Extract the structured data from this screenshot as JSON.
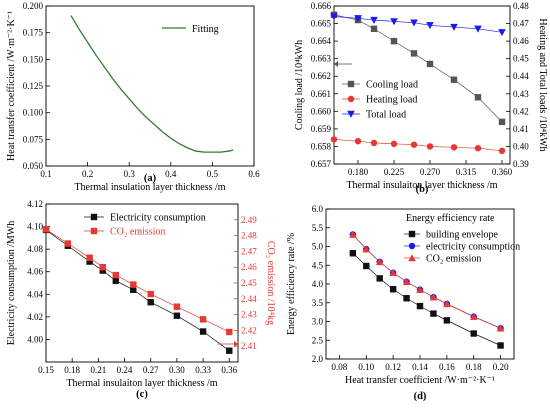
{
  "chart_data": [
    {
      "id": "a",
      "type": "line",
      "panel_label": "(a)",
      "xlabel": "Thermal insulation layer thickness /m",
      "ylabel": "Heat transfer coefficient /W·m⁻²·K⁻¹",
      "xlim": [
        0.1,
        0.6
      ],
      "ylim": [
        0.05,
        0.2
      ],
      "xticks": [
        "0.1",
        "0.2",
        "0.3",
        "0.4",
        "0.5",
        "0.6"
      ],
      "yticks": [
        "0.050",
        "0.075",
        "0.100",
        "0.125",
        "0.150",
        "0.175",
        "0.200"
      ],
      "legend": "top-right",
      "series": [
        {
          "name": "Fitting",
          "color": "#2e7d32",
          "x": [
            0.16,
            0.18,
            0.2,
            0.22,
            0.24,
            0.26,
            0.28,
            0.3,
            0.32,
            0.34,
            0.36,
            0.38,
            0.4,
            0.42,
            0.44,
            0.46,
            0.48,
            0.5,
            0.52,
            0.54,
            0.55
          ],
          "y": [
            0.191,
            0.178,
            0.166,
            0.154,
            0.143,
            0.132,
            0.122,
            0.113,
            0.104,
            0.096,
            0.089,
            0.082,
            0.076,
            0.071,
            0.067,
            0.064,
            0.063,
            0.063,
            0.063,
            0.064,
            0.065
          ]
        }
      ]
    },
    {
      "id": "b",
      "type": "line",
      "panel_label": "(b)",
      "xlabel": "Thermal insulaiton layer thickness /m",
      "ylabel": "Cooling load /10⁴kWh",
      "y2label": "Heating and Total loads /10⁴kWh",
      "xlim": [
        0.15,
        0.37
      ],
      "ylim": [
        0.657,
        0.666
      ],
      "y2lim": [
        0.39,
        0.48
      ],
      "xticks": [
        "0.180",
        "0.225",
        "0.270",
        "0.315",
        "0.360"
      ],
      "yticks": [
        "0.657",
        "0.658",
        "0.659",
        "0.660",
        "0.661",
        "0.662",
        "0.663",
        "0.664",
        "0.665",
        "0.666"
      ],
      "y2ticks": [
        "0.39",
        "0.40",
        "0.41",
        "0.42",
        "0.43",
        "0.44",
        "0.45",
        "0.46",
        "0.47",
        "0.48"
      ],
      "legend": "center-left",
      "x": [
        0.15,
        0.18,
        0.2,
        0.225,
        0.25,
        0.27,
        0.3,
        0.33,
        0.36
      ],
      "series": [
        {
          "name": "Cooling load",
          "color": "#555555",
          "marker": "square",
          "axis": "y",
          "values": [
            0.6655,
            0.6652,
            0.6647,
            0.664,
            0.6633,
            0.6627,
            0.6618,
            0.6608,
            0.6594
          ]
        },
        {
          "name": "Heating load",
          "color": "#e53935",
          "marker": "circle",
          "axis": "y2",
          "values": [
            0.404,
            0.403,
            0.402,
            0.4015,
            0.401,
            0.4,
            0.3995,
            0.399,
            0.3975
          ]
        },
        {
          "name": "Total load",
          "color": "#1a1aee",
          "marker": "triangle-down",
          "axis": "y2",
          "values": [
            0.474,
            0.473,
            0.472,
            0.4712,
            0.4705,
            0.469,
            0.468,
            0.467,
            0.465
          ]
        }
      ]
    },
    {
      "id": "c",
      "type": "line",
      "panel_label": "(c)",
      "xlabel": "Thermal insulaiton layer thickness /m",
      "ylabel": "Electricity consumption /MWh",
      "y2label": "CO₂ emission /10⁴kg",
      "xlim": [
        0.15,
        0.37
      ],
      "ylim": [
        3.98,
        4.12
      ],
      "y2lim": [
        2.4,
        2.5
      ],
      "xticks": [
        "0.15",
        "0.18",
        "0.21",
        "0.24",
        "0.27",
        "0.30",
        "0.33",
        "0.36"
      ],
      "yticks": [
        "4.00",
        "4.02",
        "4.04",
        "4.06",
        "4.08",
        "4.10",
        "4.12"
      ],
      "y2ticks": [
        "2.41",
        "2.42",
        "2.43",
        "2.44",
        "2.45",
        "2.46",
        "2.47",
        "2.48",
        "2.49"
      ],
      "legend": "top-right",
      "x": [
        0.15,
        0.175,
        0.2,
        0.215,
        0.23,
        0.25,
        0.27,
        0.3,
        0.33,
        0.36
      ],
      "series": [
        {
          "name": "Electricity consumption",
          "color": "#111111",
          "marker": "square",
          "axis": "y",
          "values": [
            4.097,
            4.083,
            4.069,
            4.061,
            4.052,
            4.044,
            4.033,
            4.021,
            4.007,
            3.99
          ]
        },
        {
          "name": "CO₂ emission",
          "color": "#e53935",
          "marker": "square",
          "axis": "y2",
          "values": [
            2.484,
            2.475,
            2.466,
            2.46,
            2.455,
            2.449,
            2.443,
            2.435,
            2.427,
            2.419
          ]
        }
      ]
    },
    {
      "id": "d",
      "type": "line",
      "panel_label": "(d)",
      "xlabel": "Heat transfer coefficient /W·m⁻²·K⁻¹",
      "ylabel": "Energy efficiency rate /%",
      "xlim": [
        0.07,
        0.21
      ],
      "ylim": [
        2.0,
        6.0
      ],
      "xticks": [
        "0.08",
        "0.10",
        "0.12",
        "0.14",
        "0.16",
        "0.18",
        "0.20"
      ],
      "yticks": [
        "2.0",
        "2.5",
        "3.0",
        "3.5",
        "4.0",
        "4.5",
        "5.0",
        "5.5",
        "6.0"
      ],
      "legend": "top-right",
      "legend_title": "Energy efficiency rate",
      "x": [
        0.09,
        0.1,
        0.11,
        0.12,
        0.13,
        0.14,
        0.15,
        0.16,
        0.18,
        0.2
      ],
      "series": [
        {
          "name": "building envelope",
          "color": "#111111",
          "marker": "square",
          "values": [
            4.82,
            4.48,
            4.15,
            3.86,
            3.62,
            3.41,
            3.21,
            3.03,
            2.68,
            2.36
          ]
        },
        {
          "name": "electricity consumption",
          "color": "#1a1aee",
          "marker": "circle",
          "values": [
            5.32,
            4.93,
            4.59,
            4.3,
            4.06,
            3.85,
            3.65,
            3.47,
            3.13,
            2.82
          ]
        },
        {
          "name": "CO₂ emission",
          "color": "#e53935",
          "marker": "triangle-up",
          "values": [
            5.32,
            4.93,
            4.59,
            4.3,
            4.06,
            3.85,
            3.65,
            3.47,
            3.13,
            2.82
          ]
        }
      ]
    }
  ]
}
